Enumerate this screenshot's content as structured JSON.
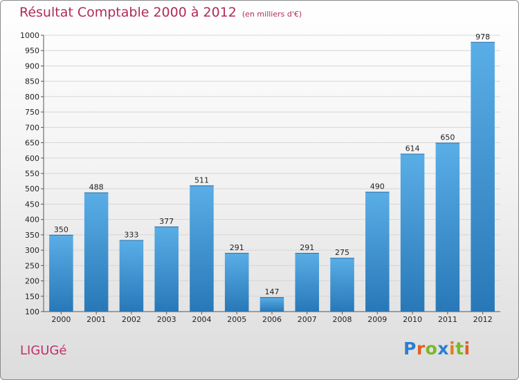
{
  "chart_data": {
    "type": "bar",
    "title": "Résultat Comptable 2000 à 2012",
    "subtitle": "(en milliers d'€)",
    "categories": [
      "2000",
      "2001",
      "2002",
      "2003",
      "2004",
      "2005",
      "2006",
      "2007",
      "2008",
      "2009",
      "2010",
      "2011",
      "2012"
    ],
    "values": [
      350,
      488,
      333,
      377,
      511,
      291,
      147,
      291,
      275,
      490,
      614,
      650,
      978
    ],
    "ylim": [
      100,
      1000
    ],
    "yticks": [
      100,
      150,
      200,
      250,
      300,
      350,
      400,
      450,
      500,
      550,
      600,
      650,
      700,
      750,
      800,
      850,
      900,
      950,
      1000
    ],
    "grid": true,
    "xlabel": "",
    "ylabel": "",
    "bar_color_top": "#5aaee6",
    "bar_color_bottom": "#2878b8"
  },
  "footer": {
    "commune": "LIGUGé"
  },
  "logo": {
    "text": "Proxiti",
    "letter_colors": [
      "#2a7fd0",
      "#e06020",
      "#7ab828",
      "#2a7fd0",
      "#e08020",
      "#7ab828",
      "#e06020"
    ]
  }
}
